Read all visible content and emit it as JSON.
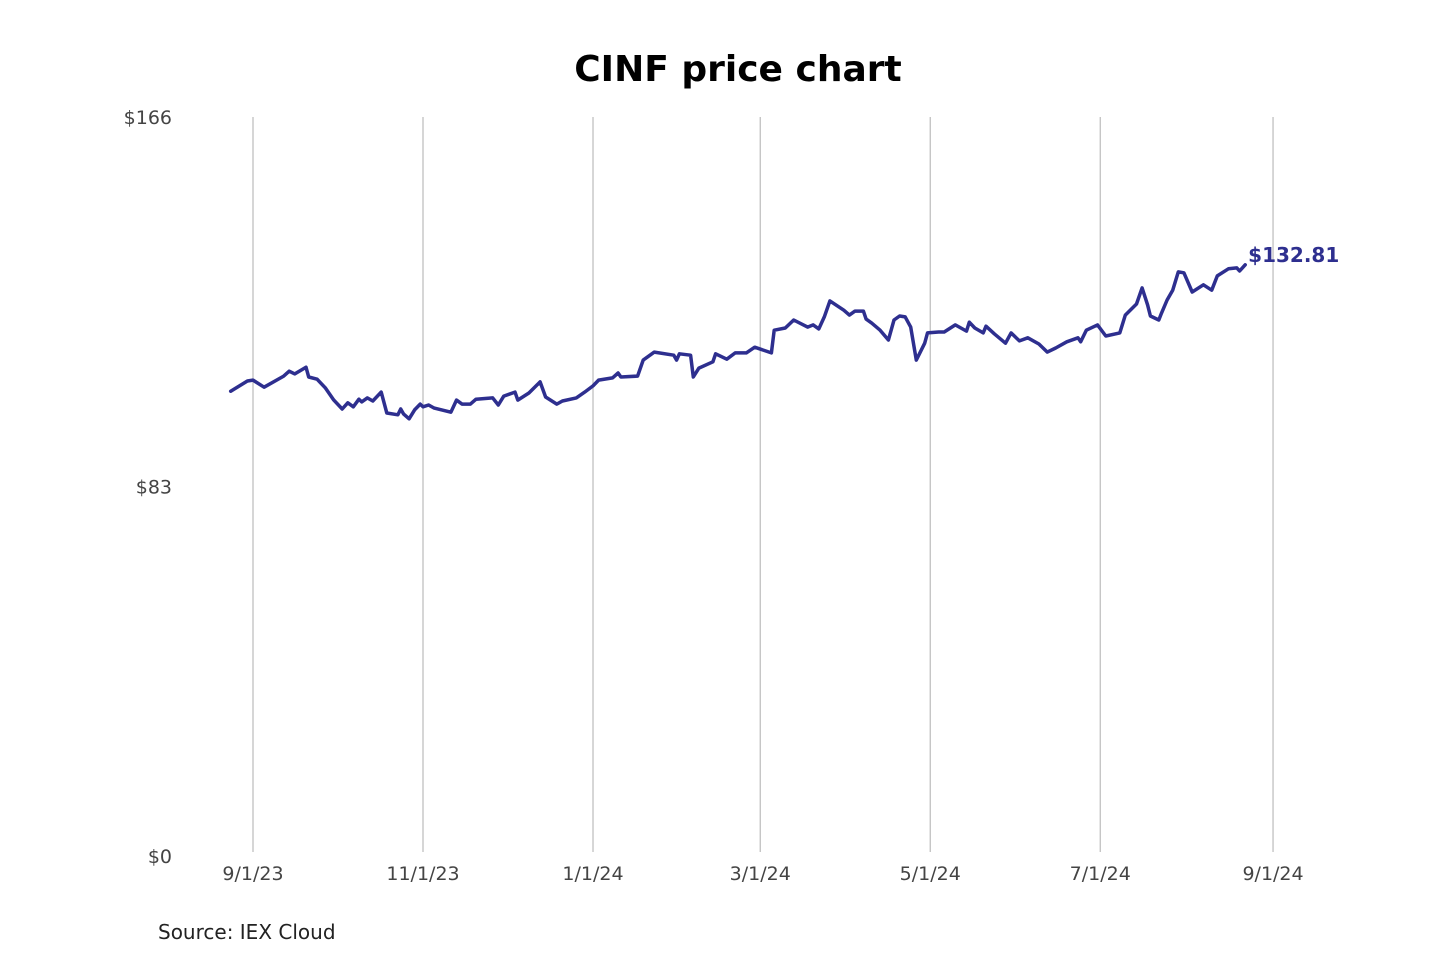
{
  "chart_data": {
    "type": "line",
    "title": "CINF price chart",
    "source": "Source: IEX Cloud",
    "xlabel": "",
    "ylabel": "",
    "x_unit": "days since 2023-09-01",
    "ylim": [
      0,
      166
    ],
    "xlim": [
      -8,
      366
    ],
    "grid": "vertical",
    "y_ticks": [
      {
        "value": 166,
        "label": "$166"
      },
      {
        "value": 83,
        "label": "$83"
      },
      {
        "value": 0,
        "label": "$0"
      }
    ],
    "x_ticks": [
      {
        "value": 0,
        "label": "9/1/23"
      },
      {
        "value": 61,
        "label": "11/1/23"
      },
      {
        "value": 122,
        "label": "1/1/24"
      },
      {
        "value": 182,
        "label": "3/1/24"
      },
      {
        "value": 243,
        "label": "5/1/24"
      },
      {
        "value": 304,
        "label": "7/1/24"
      },
      {
        "value": 366,
        "label": "9/1/24"
      }
    ],
    "last_label": "$132.81",
    "color": "#2e2f8f",
    "series": [
      {
        "name": "CINF",
        "x": [
          -8,
          -2,
          0,
          4,
          11,
          13,
          15,
          19,
          20,
          23,
          26,
          29,
          32,
          34,
          36,
          38,
          39,
          41,
          43,
          46,
          48,
          52,
          53,
          54,
          56,
          58,
          60,
          61,
          63,
          65,
          69,
          71,
          73,
          75,
          78,
          80,
          86,
          88,
          90,
          94,
          95,
          99,
          103,
          105,
          109,
          111,
          116,
          119,
          122,
          124,
          129,
          131,
          132,
          138,
          140,
          144,
          151,
          152,
          153,
          157,
          158,
          160,
          165,
          166,
          170,
          173,
          177,
          180,
          186,
          187,
          191,
          194,
          199,
          201,
          203,
          205,
          207,
          212,
          214,
          216,
          219,
          220,
          222,
          225,
          228,
          230,
          232,
          234,
          236,
          238,
          241,
          242,
          246,
          248,
          252,
          256,
          257,
          259,
          262,
          263,
          266,
          270,
          272,
          275,
          278,
          282,
          285,
          288,
          292,
          296,
          297,
          299,
          303,
          306,
          311,
          313,
          317,
          319,
          321,
          322,
          325,
          326,
          328,
          330,
          332,
          334,
          337,
          341,
          344,
          346,
          350,
          353,
          354,
          356
        ],
        "values": [
          104.4,
          106.7,
          106.9,
          105.3,
          107.8,
          108.9,
          108.3,
          109.8,
          107.6,
          107.1,
          105.1,
          102.4,
          100.4,
          101.8,
          100.9,
          102.6,
          102.0,
          102.9,
          102.2,
          104.2,
          99.5,
          99.1,
          100.4,
          99.3,
          98.2,
          100.2,
          101.5,
          100.9,
          101.3,
          100.6,
          100.0,
          99.7,
          102.4,
          101.5,
          101.5,
          102.6,
          102.9,
          101.3,
          103.3,
          104.2,
          102.4,
          104.0,
          106.5,
          103.1,
          101.5,
          102.2,
          102.9,
          104.2,
          105.6,
          106.9,
          107.4,
          108.5,
          107.6,
          107.8,
          111.4,
          113.2,
          112.5,
          111.4,
          112.8,
          112.5,
          107.6,
          109.6,
          111.0,
          112.8,
          111.6,
          113.0,
          113.0,
          114.3,
          113.0,
          118.1,
          118.6,
          120.4,
          118.8,
          119.3,
          118.4,
          121.1,
          124.7,
          122.6,
          121.5,
          122.4,
          122.4,
          120.6,
          119.7,
          118.1,
          115.9,
          120.4,
          121.3,
          121.1,
          118.8,
          111.4,
          115.2,
          117.5,
          117.7,
          117.7,
          119.3,
          117.9,
          119.9,
          118.6,
          117.5,
          119.0,
          117.3,
          115.2,
          117.5,
          115.7,
          116.4,
          115.0,
          113.2,
          114.1,
          115.5,
          116.4,
          115.5,
          118.1,
          119.3,
          116.8,
          117.5,
          121.5,
          124.0,
          127.6,
          123.8,
          121.3,
          120.4,
          122.0,
          124.9,
          127.1,
          131.2,
          131.0,
          126.7,
          128.3,
          127.1,
          130.3,
          131.9,
          132.1,
          131.4,
          132.81
        ]
      }
    ]
  }
}
